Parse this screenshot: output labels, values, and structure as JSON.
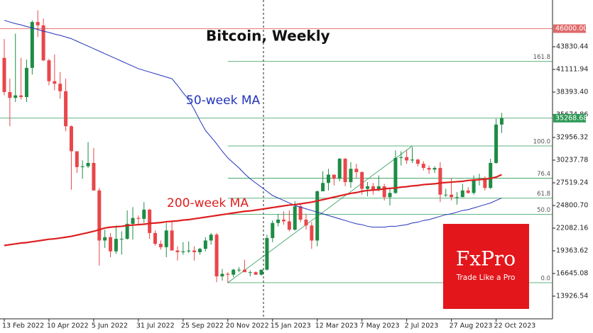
{
  "chart_data": {
    "type": "candlestick",
    "title": "Bitcoin, Weekly",
    "categories": [
      "13 Feb 2022",
      null,
      null,
      null,
      null,
      null,
      null,
      null,
      "10 Apr 2022",
      null,
      null,
      null,
      null,
      null,
      null,
      null,
      "5 Jun 2022",
      null,
      null,
      null,
      null,
      null,
      null,
      null,
      "31 Jul 2022",
      null,
      null,
      null,
      null,
      null,
      null,
      null,
      "25 Sep 2022",
      null,
      null,
      null,
      null,
      null,
      null,
      null,
      "20 Nov 2022",
      null,
      null,
      null,
      null,
      null,
      null,
      null,
      "15 Jan 2023",
      null,
      null,
      null,
      null,
      null,
      null,
      null,
      "12 Mar 2023",
      null,
      null,
      null,
      null,
      null,
      null,
      null,
      "7 May 2023",
      null,
      null,
      null,
      null,
      null,
      null,
      null,
      "2 Jul 2023",
      null,
      null,
      null,
      null,
      null,
      null,
      null,
      "27 Aug 2023",
      null,
      null,
      null,
      null,
      null,
      null,
      null,
      "22 Oct 2023",
      null
    ],
    "open": [
      42500,
      38400,
      37700,
      38000,
      37800,
      41300,
      46800,
      46400,
      42200,
      39700,
      39400,
      38500,
      34300,
      31300,
      29400,
      29500,
      29900,
      26600,
      20600,
      21000,
      19300,
      20800,
      20800,
      22600,
      23300,
      23200,
      24300,
      21500,
      20200,
      19800,
      21800,
      19400,
      19200,
      19300,
      19400,
      19200,
      19600,
      20600,
      21300,
      16300,
      16600,
      16500,
      17100,
      17100,
      16800,
      16800,
      16500,
      17100,
      20900,
      22700,
      23100,
      22900,
      21900,
      24700,
      23100,
      22400,
      20600,
      26500,
      27500,
      28500,
      28000,
      30400,
      27600,
      29200,
      28800,
      26800,
      27100,
      26700,
      27100,
      25800,
      26300,
      30500,
      30600,
      30200,
      30300,
      29800,
      29300,
      29100,
      29300,
      26100,
      26100,
      25800,
      25800,
      26600,
      26300,
      27900,
      27900,
      26900,
      29900,
      34500
    ],
    "high": [
      44750,
      40000,
      45400,
      42500,
      42300,
      47000,
      48200,
      47200,
      42400,
      42900,
      40800,
      40000,
      34400,
      31300,
      30200,
      32400,
      31700,
      26900,
      21900,
      21500,
      22400,
      21700,
      24200,
      24600,
      23600,
      25200,
      24400,
      21800,
      20600,
      22700,
      22800,
      19900,
      20400,
      20500,
      19900,
      19700,
      21000,
      21500,
      21500,
      17200,
      16800,
      17200,
      17400,
      18300,
      17000,
      16900,
      17100,
      21300,
      23000,
      23800,
      24100,
      24200,
      25300,
      25100,
      23800,
      22800,
      26600,
      28900,
      29200,
      28500,
      30500,
      30500,
      30000,
      29800,
      28900,
      27600,
      27500,
      28400,
      27400,
      26800,
      31400,
      31300,
      31400,
      31800,
      30400,
      30100,
      29600,
      29500,
      30000,
      26800,
      28100,
      26400,
      27400,
      27000,
      28400,
      28600,
      28300,
      30400,
      35200,
      35900
    ],
    "low": [
      38000,
      34300,
      37200,
      37500,
      37200,
      40500,
      45000,
      42100,
      39200,
      38600,
      37600,
      33700,
      26700,
      28700,
      28000,
      29300,
      26600,
      17600,
      19700,
      18600,
      19000,
      18900,
      20700,
      20700,
      22400,
      22700,
      20800,
      20000,
      19500,
      18600,
      19400,
      18200,
      18900,
      19100,
      18200,
      18900,
      19300,
      20100,
      15600,
      15800,
      15500,
      16200,
      16800,
      16900,
      16300,
      16500,
      16400,
      17000,
      20400,
      22300,
      22500,
      21700,
      21800,
      22800,
      21900,
      19600,
      19900,
      26500,
      26600,
      27200,
      27700,
      27100,
      26900,
      28100,
      26100,
      25900,
      26100,
      26500,
      25400,
      24800,
      26200,
      29600,
      29800,
      29900,
      29500,
      29000,
      28600,
      28700,
      25200,
      25800,
      25400,
      24900,
      25800,
      26200,
      26100,
      27200,
      26600,
      26800,
      29800,
      33500
    ],
    "close": [
      38400,
      37700,
      38000,
      37800,
      41300,
      46800,
      46400,
      42200,
      39700,
      39400,
      38500,
      34300,
      31300,
      29400,
      29500,
      29900,
      26600,
      20600,
      21000,
      19300,
      20800,
      20800,
      22600,
      23300,
      23200,
      24300,
      21500,
      20200,
      19800,
      21800,
      19400,
      19200,
      19300,
      19400,
      19200,
      19600,
      20600,
      21300,
      16300,
      16600,
      16500,
      17100,
      17100,
      16800,
      16800,
      16500,
      17100,
      20900,
      22700,
      23100,
      22900,
      21900,
      24700,
      23100,
      22400,
      20600,
      26500,
      27500,
      28500,
      28000,
      30400,
      27600,
      29200,
      28800,
      26800,
      27100,
      26700,
      27100,
      25800,
      26300,
      30500,
      30600,
      30200,
      30300,
      29800,
      29300,
      29100,
      29300,
      26100,
      26100,
      25800,
      25800,
      26600,
      26300,
      27900,
      27900,
      26900,
      29900,
      34500,
      35300
    ],
    "up_color": "#1e8c45",
    "down_color": "#e8474a",
    "lines": [
      {
        "name": "50-week MA",
        "color": "#2233bb",
        "values": [
          47000,
          46800,
          46600,
          46450,
          46250,
          46100,
          45900,
          45700,
          45550,
          45350,
          45200,
          45000,
          44800,
          44500,
          44200,
          43900,
          43600,
          43300,
          43000,
          42700,
          42400,
          42100,
          41800,
          41500,
          41200,
          41000,
          40800,
          40600,
          40400,
          40200,
          40000,
          39200,
          38300,
          37500,
          36300,
          35000,
          33800,
          33000,
          32200,
          31300,
          30500,
          29900,
          29300,
          28600,
          28000,
          27500,
          27000,
          26500,
          26000,
          25700,
          25400,
          25100,
          24800,
          24600,
          24400,
          24200,
          24000,
          23800,
          23600,
          23400,
          23200,
          23000,
          22800,
          22600,
          22500,
          22300,
          22200,
          22200,
          22200,
          22300,
          22300,
          22400,
          22500,
          22700,
          22800,
          23000,
          23100,
          23300,
          23500,
          23700,
          23800,
          24000,
          24200,
          24300,
          24500,
          24700,
          24900,
          25100,
          25400,
          25700
        ]
      },
      {
        "name": "200-week MA",
        "color": "#dd1f1f",
        "values": [
          20000,
          20100,
          20200,
          20300,
          20350,
          20450,
          20550,
          20650,
          20750,
          20800,
          20900,
          21000,
          21100,
          21250,
          21400,
          21550,
          21700,
          21900,
          22100,
          22200,
          22250,
          22300,
          22400,
          22450,
          22500,
          22550,
          22650,
          22700,
          22750,
          22850,
          22900,
          22950,
          23050,
          23100,
          23200,
          23300,
          23400,
          23500,
          23600,
          23700,
          23800,
          23900,
          24000,
          24100,
          24150,
          24250,
          24350,
          24450,
          24550,
          24650,
          24750,
          24850,
          24900,
          25000,
          25100,
          25200,
          25350,
          25500,
          25650,
          25800,
          25950,
          26100,
          26250,
          26350,
          26500,
          26600,
          26650,
          26700,
          26800,
          26850,
          26900,
          27000,
          27050,
          27150,
          27200,
          27300,
          27350,
          27400,
          27500,
          27550,
          27600,
          27650,
          27700,
          27800,
          27850,
          27900,
          27950,
          28050,
          28200,
          28500
        ]
      }
    ],
    "levels": [
      {
        "value": 46000,
        "label": "46000.00",
        "color": "#e06a6a"
      },
      {
        "value": 35268.68,
        "label": "35268.68",
        "color": "#2e9a57"
      }
    ],
    "fibonacci": {
      "low": 15541,
      "high": 31937,
      "color": "#2e9a57",
      "levels": [
        {
          "value": 161.8,
          "label": "161.8"
        },
        {
          "value": 100,
          "label": "100.0"
        },
        {
          "value": 76.4,
          "label": "76.4"
        },
        {
          "value": 61.8,
          "label": "61.8"
        },
        {
          "value": 50,
          "label": "50.0"
        },
        {
          "value": 0,
          "label": "0.0"
        }
      ]
    },
    "ylim": [
      11207.9,
      49437.4
    ],
    "yticks": [
      43830.44,
      41111.94,
      {
        "value": 38393.4,
        "label": "38393.40"
      },
      35674.86,
      32956.32,
      30237.78,
      27519.24,
      {
        "value": 24800.7,
        "label": "24800.70"
      },
      22082.16,
      19363.62,
      16645.08,
      13926.54
    ],
    "watermark": {
      "brand": "FxPro",
      "tagline": "Trade Like a Pro"
    }
  }
}
